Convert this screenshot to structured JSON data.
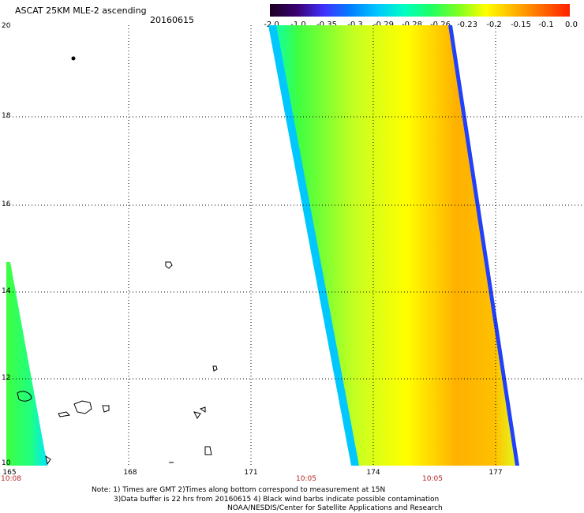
{
  "header": {
    "title": "ASCAT 25KM MLE-2 ascending",
    "date": "20160615"
  },
  "colorbar": {
    "labels": [
      "-2.0",
      "-1.0",
      "-0.35",
      "-0.3",
      "-0.29",
      "-0.28",
      "-0.26",
      "-0.23",
      "-0.2",
      "-0.15",
      "-0.1",
      "0.0"
    ],
    "colors": [
      "#1a0020",
      "#3a0070",
      "#4030ff",
      "#0080ff",
      "#00c8ff",
      "#00ffc0",
      "#20ff60",
      "#80ff20",
      "#d0ff20",
      "#ffff00",
      "#ffb000",
      "#ff6000",
      "#ff2000"
    ]
  },
  "axes": {
    "lat_labels": [
      "20",
      "18",
      "16",
      "14",
      "12",
      "10"
    ],
    "lon_labels": [
      "165",
      "168",
      "171",
      "174",
      "177"
    ],
    "time_labels": [
      "10:08",
      "10:05",
      "10:05"
    ]
  },
  "notes": {
    "line1": "Note: 1) Times are GMT 2)Times along bottom correspond to measurement at 15N",
    "line2": "3)Data buffer is 22 hrs from 20160615 4) Black wind barbs indicate possible contamination",
    "line3": "NOAA/NESDIS/Center for Satellite Applications and Research"
  }
}
